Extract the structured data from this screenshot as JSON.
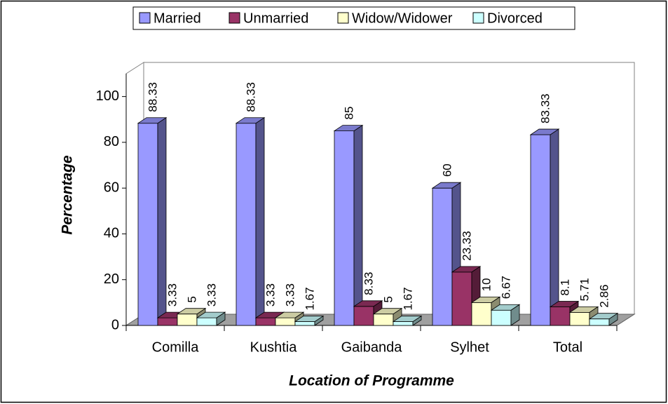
{
  "chart_data": {
    "type": "bar3d",
    "categories": [
      "Comilla",
      "Kushtia",
      "Gaibanda",
      "Sylhet",
      "Total"
    ],
    "series": [
      {
        "name": "Married",
        "color": "#9999ff",
        "values": [
          88.33,
          88.33,
          85,
          60,
          83.33
        ]
      },
      {
        "name": "Unmarried",
        "color": "#993366",
        "values": [
          3.33,
          3.33,
          8.33,
          23.33,
          8.1
        ]
      },
      {
        "name": "Widow/Widower",
        "color": "#ffffcc",
        "values": [
          5,
          3.33,
          5,
          10,
          5.71
        ]
      },
      {
        "name": "Divorced",
        "color": "#ccffff",
        "values": [
          3.33,
          1.67,
          1.67,
          6.67,
          2.86
        ]
      }
    ],
    "xlabel": "Location of Programme",
    "ylabel": "Percentage",
    "ylim": [
      0,
      110
    ],
    "yticks": [
      0,
      20,
      40,
      60,
      80,
      100
    ],
    "legend": "top"
  }
}
